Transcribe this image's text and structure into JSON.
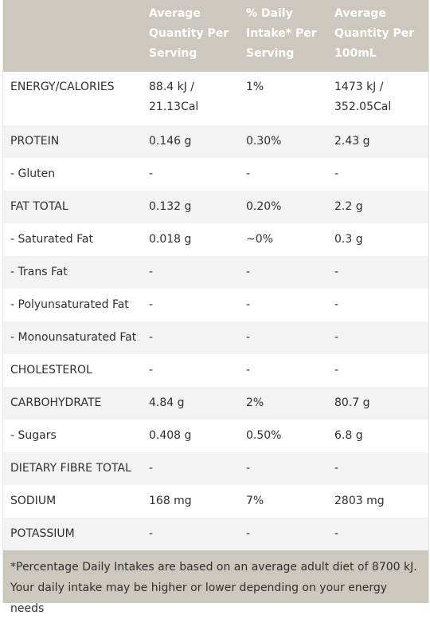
{
  "table": {
    "headers": [
      "",
      "Average Quantity Per Serving",
      "% Daily Intake* Per Serving",
      "Average Quantity Per 100mL"
    ],
    "rows": [
      [
        "ENERGY/CALORIES",
        "88.4 kJ / 21.13Cal",
        "1%",
        "1473 kJ / 352.05Cal"
      ],
      [
        "PROTEIN",
        "0.146 g",
        "0.30%",
        "2.43 g"
      ],
      [
        "- Gluten",
        "-",
        "-",
        "-"
      ],
      [
        "FAT TOTAL",
        "0.132 g",
        "0.20%",
        "2.2 g"
      ],
      [
        "- Saturated Fat",
        "0.018 g",
        "~0%",
        "0.3 g"
      ],
      [
        "- Trans Fat",
        "-",
        "-",
        "-"
      ],
      [
        "- Polyunsaturated Fat",
        "-",
        "-",
        "-"
      ],
      [
        "- Monounsaturated Fat",
        "-",
        "-",
        "-"
      ],
      [
        "CHOLESTEROL",
        "-",
        "-",
        "-"
      ],
      [
        "CARBOHYDRATE",
        "4.84 g",
        "2%",
        "80.7 g"
      ],
      [
        "- Sugars",
        "0.408 g",
        "0.50%",
        "6.8 g"
      ],
      [
        "DIETARY FIBRE TOTAL",
        "-",
        "-",
        "-"
      ],
      [
        "SODIUM",
        "168 mg",
        "7%",
        "2803 mg"
      ],
      [
        "POTASSIUM",
        "-",
        "-",
        "-"
      ]
    ],
    "footnote": "*Percentage Daily Intakes are based on an average adult diet of 8700 kJ. Your daily intake may be higher or lower depending on your energy needs"
  },
  "colors": {
    "header_bg": "#ccc8bd",
    "stripe_bg": "#f3f3f3",
    "text": "#2f2f2f"
  }
}
